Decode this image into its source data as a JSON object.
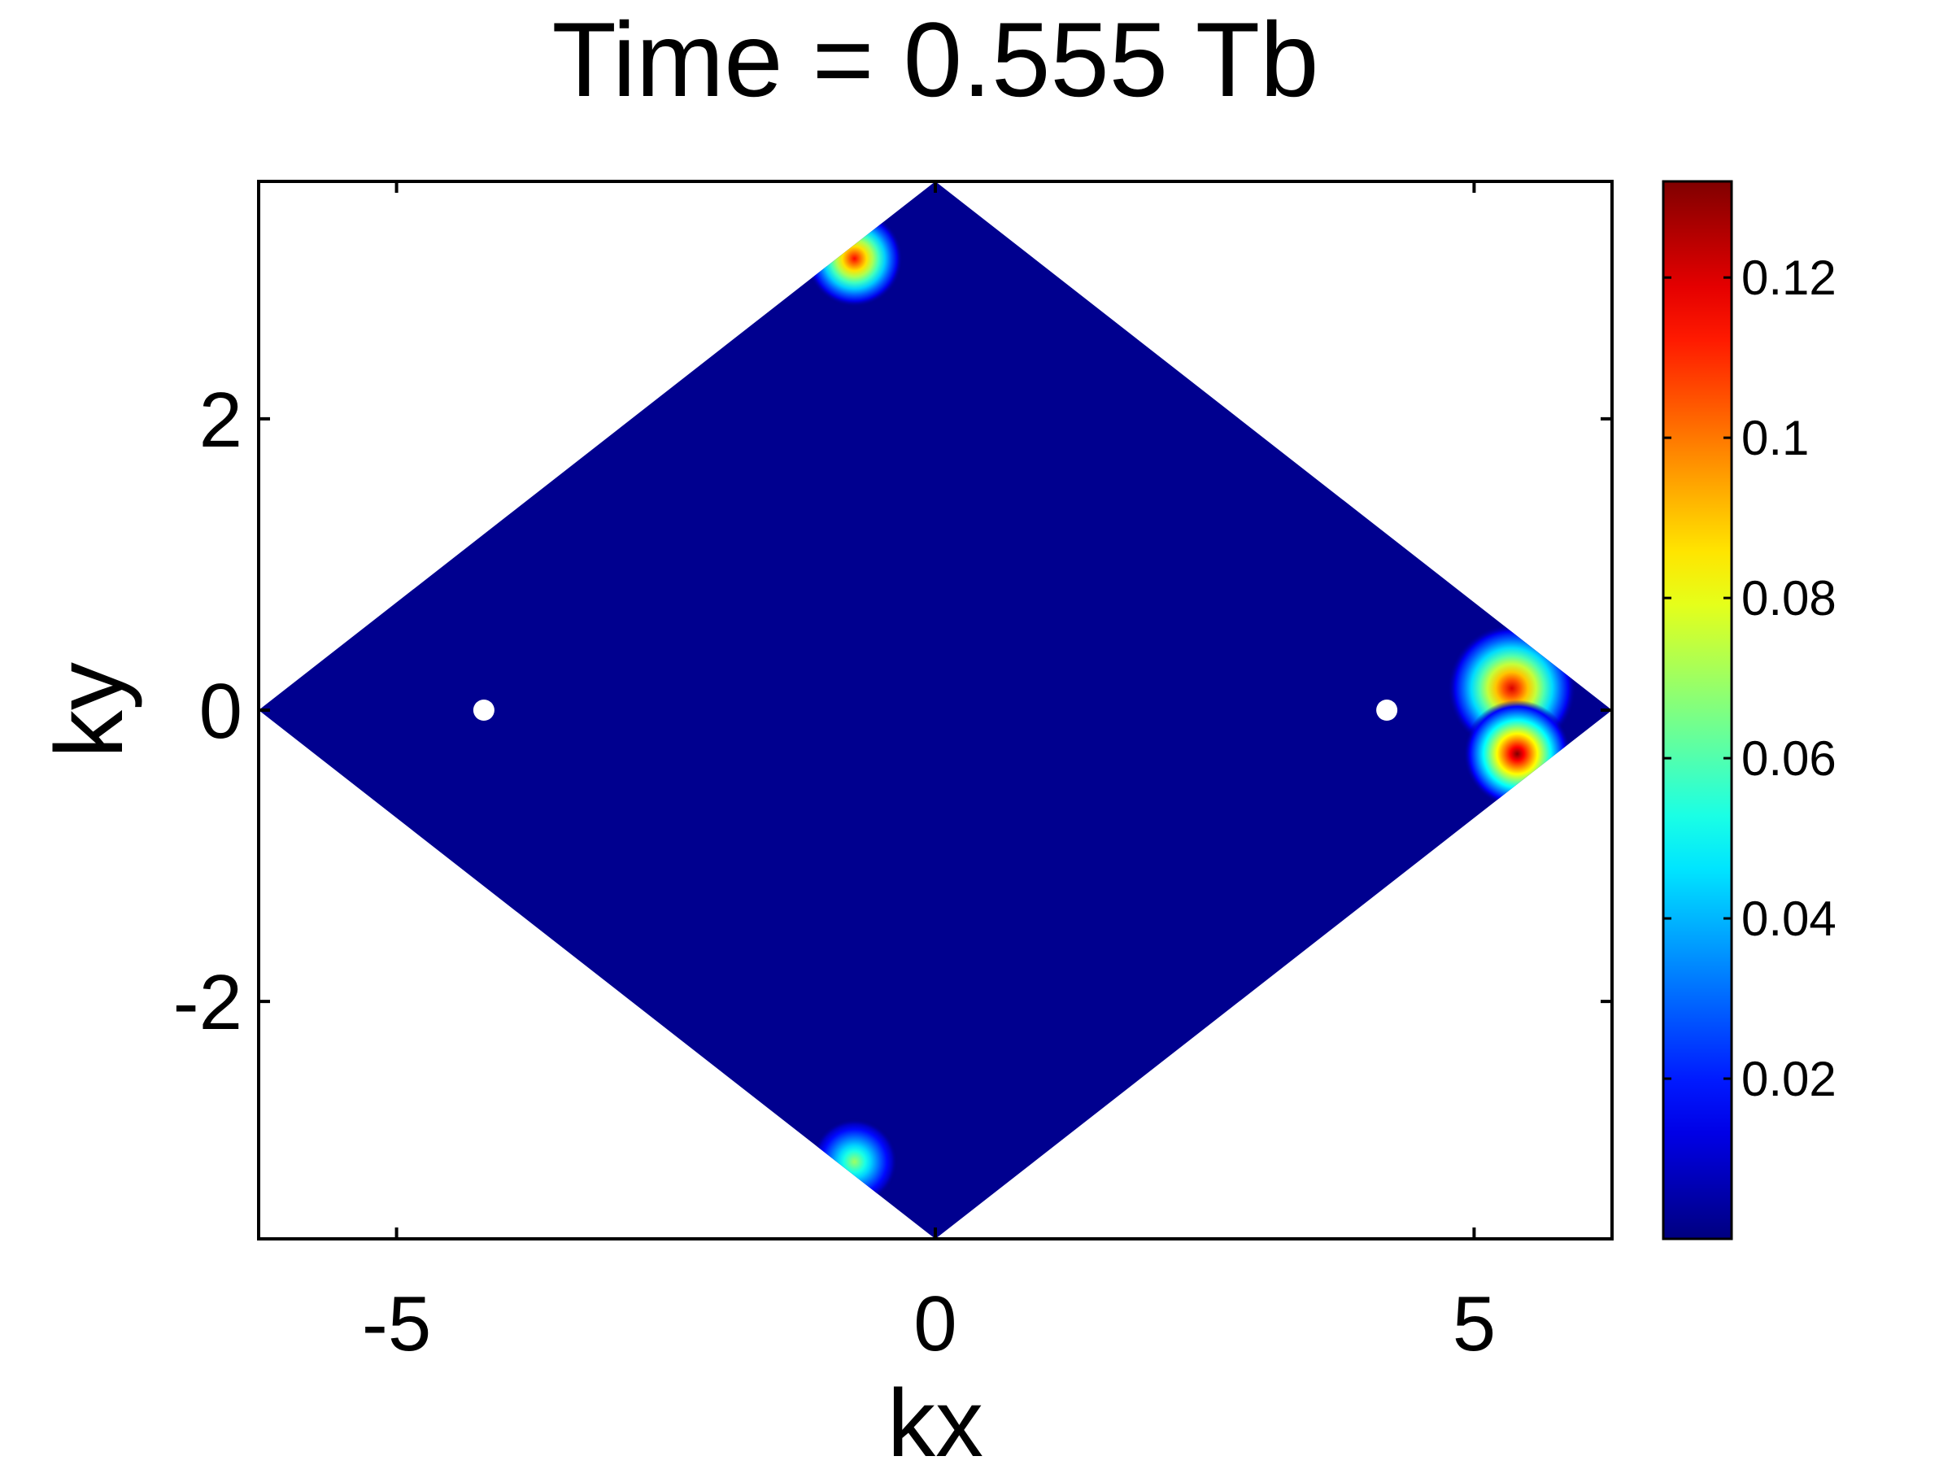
{
  "chart_data": {
    "type": "heatmap",
    "title": "Time = 0.555 Tb",
    "xlabel": "kx",
    "ylabel": "ky",
    "xlim": [
      -6.28,
      6.28
    ],
    "ylim": [
      -3.63,
      3.63
    ],
    "x_ticks": [
      {
        "value": -5,
        "label": "-5"
      },
      {
        "value": 0,
        "label": "0"
      },
      {
        "value": 5,
        "label": "5"
      }
    ],
    "y_ticks": [
      {
        "value": 2,
        "label": "2"
      },
      {
        "value": 0,
        "label": "0"
      },
      {
        "value": -2,
        "label": "-2"
      }
    ],
    "grid": false,
    "colormap": "jet",
    "background_value_color": "#00008f",
    "colorbar": {
      "range": [
        0.0,
        0.132
      ],
      "ticks": [
        {
          "value": 0.02,
          "label": "0.02"
        },
        {
          "value": 0.04,
          "label": "0.04"
        },
        {
          "value": 0.06,
          "label": "0.06"
        },
        {
          "value": 0.08,
          "label": "0.08"
        },
        {
          "value": 0.1,
          "label": "0.1"
        },
        {
          "value": 0.12,
          "label": "0.12"
        }
      ]
    },
    "region": {
      "shape": "rhombus",
      "vertices": [
        [
          -6.28,
          0
        ],
        [
          0,
          3.63
        ],
        [
          6.28,
          0
        ],
        [
          0,
          -3.63
        ]
      ],
      "base_value": 0.0
    },
    "excluded_points": [
      [
        -4.19,
        0
      ],
      [
        4.19,
        0
      ]
    ],
    "hotspots": [
      {
        "x": -0.75,
        "y": 3.1,
        "peak": 0.115,
        "radius": 0.45
      },
      {
        "x": 5.35,
        "y": 0.15,
        "peak": 0.12,
        "radius": 0.6
      },
      {
        "x": 5.4,
        "y": -0.3,
        "peak": 0.132,
        "radius": 0.5
      },
      {
        "x": -0.75,
        "y": -3.1,
        "peak": 0.07,
        "radius": 0.4
      }
    ]
  }
}
